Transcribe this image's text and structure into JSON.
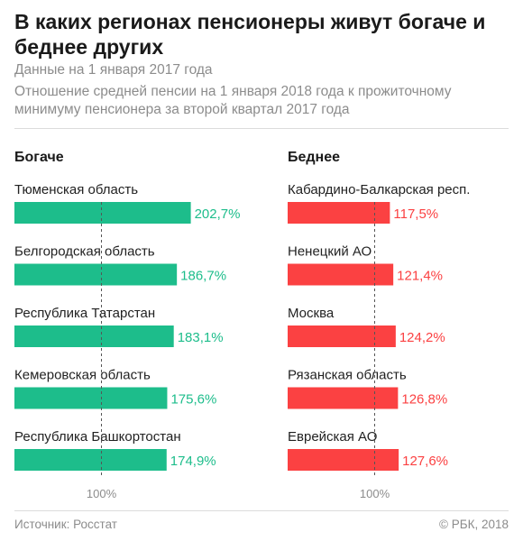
{
  "header": {
    "title": "В каких регионах пенсионеры живут богаче и беднее других",
    "subtitle": "Данные на 1 января 2017 года",
    "description": "Отношение средней пенсии на 1 января 2018 года к прожиточному минимуму пенсионера за второй квартал 2017 года"
  },
  "footer": {
    "source": "Источник: Росстат",
    "copyright": "© РБК, 2018"
  },
  "colors": {
    "rich": "#1dbd8b",
    "poor": "#fb4142",
    "reference_line": "#555555",
    "axis_text": "#8c8c8c"
  },
  "chart_data": [
    {
      "type": "bar",
      "orientation": "horizontal",
      "title": "Богаче",
      "categories": [
        "Тюменская область",
        "Белгородская область",
        "Республика Татарстан",
        "Кемеровская область",
        "Республика Башкортостан"
      ],
      "values": [
        202.7,
        186.7,
        183.1,
        175.6,
        174.9
      ],
      "value_labels": [
        "202,7%",
        "186,7%",
        "183,1%",
        "175,6%",
        "174,9%"
      ],
      "reference_line": 100,
      "reference_label": "100%",
      "color": "#1dbd8b"
    },
    {
      "type": "bar",
      "orientation": "horizontal",
      "title": "Беднее",
      "categories": [
        "Кабардино-Балкарская респ.",
        "Ненецкий АО",
        "Москва",
        "Рязанская область",
        "Еврейская АО"
      ],
      "values": [
        117.5,
        121.4,
        124.2,
        126.8,
        127.6
      ],
      "value_labels": [
        "117,5%",
        "121,4%",
        "124,2%",
        "126,8%",
        "127,6%"
      ],
      "reference_line": 100,
      "reference_label": "100%",
      "color": "#fb4142"
    }
  ]
}
